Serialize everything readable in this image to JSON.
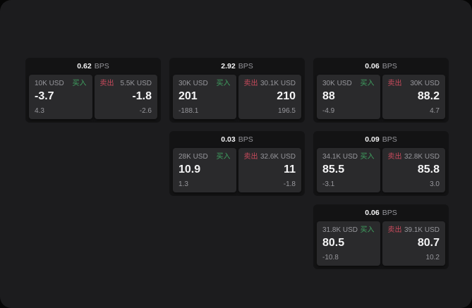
{
  "labels": {
    "bps_suffix": "BPS",
    "buy": "买入",
    "sell": "卖出"
  },
  "colors": {
    "page_bg": "#1c1c1e",
    "outer_bg": "#060606",
    "card_bg": "#131314",
    "tile_bg": "#2a2a2c",
    "text_gray": "#97979c",
    "text_white": "#f4f4f5",
    "buy": "#3fa060",
    "sell": "#c94a5c"
  },
  "cards": [
    {
      "bps": "0.62",
      "buy": {
        "size": "10K USD",
        "value": "-3.7",
        "sub": "4.3"
      },
      "sell": {
        "size": "5.5K USD",
        "value": "-1.8",
        "sub": "-2.6"
      }
    },
    {
      "bps": "2.92",
      "buy": {
        "size": "30K USD",
        "value": "201",
        "sub": "-188.1"
      },
      "sell": {
        "size": "30.1K USD",
        "value": "210",
        "sub": "196.5"
      }
    },
    {
      "bps": "0.06",
      "buy": {
        "size": "30K USD",
        "value": "88",
        "sub": "-4.9"
      },
      "sell": {
        "size": "30K USD",
        "value": "88.2",
        "sub": "4.7"
      }
    },
    {
      "bps": "0.03",
      "buy": {
        "size": "28K USD",
        "value": "10.9",
        "sub": "1.3"
      },
      "sell": {
        "size": "32.6K USD",
        "value": "11",
        "sub": "-1.8"
      }
    },
    {
      "bps": "0.09",
      "buy": {
        "size": "34.1K USD",
        "value": "85.5",
        "sub": "-3.1"
      },
      "sell": {
        "size": "32.8K USD",
        "value": "85.8",
        "sub": "3.0"
      }
    },
    {
      "bps": "0.06",
      "buy": {
        "size": "31.8K USD",
        "value": "80.5",
        "sub": "-10.8"
      },
      "sell": {
        "size": "39.1K USD",
        "value": "80.7",
        "sub": "10.2"
      }
    }
  ]
}
